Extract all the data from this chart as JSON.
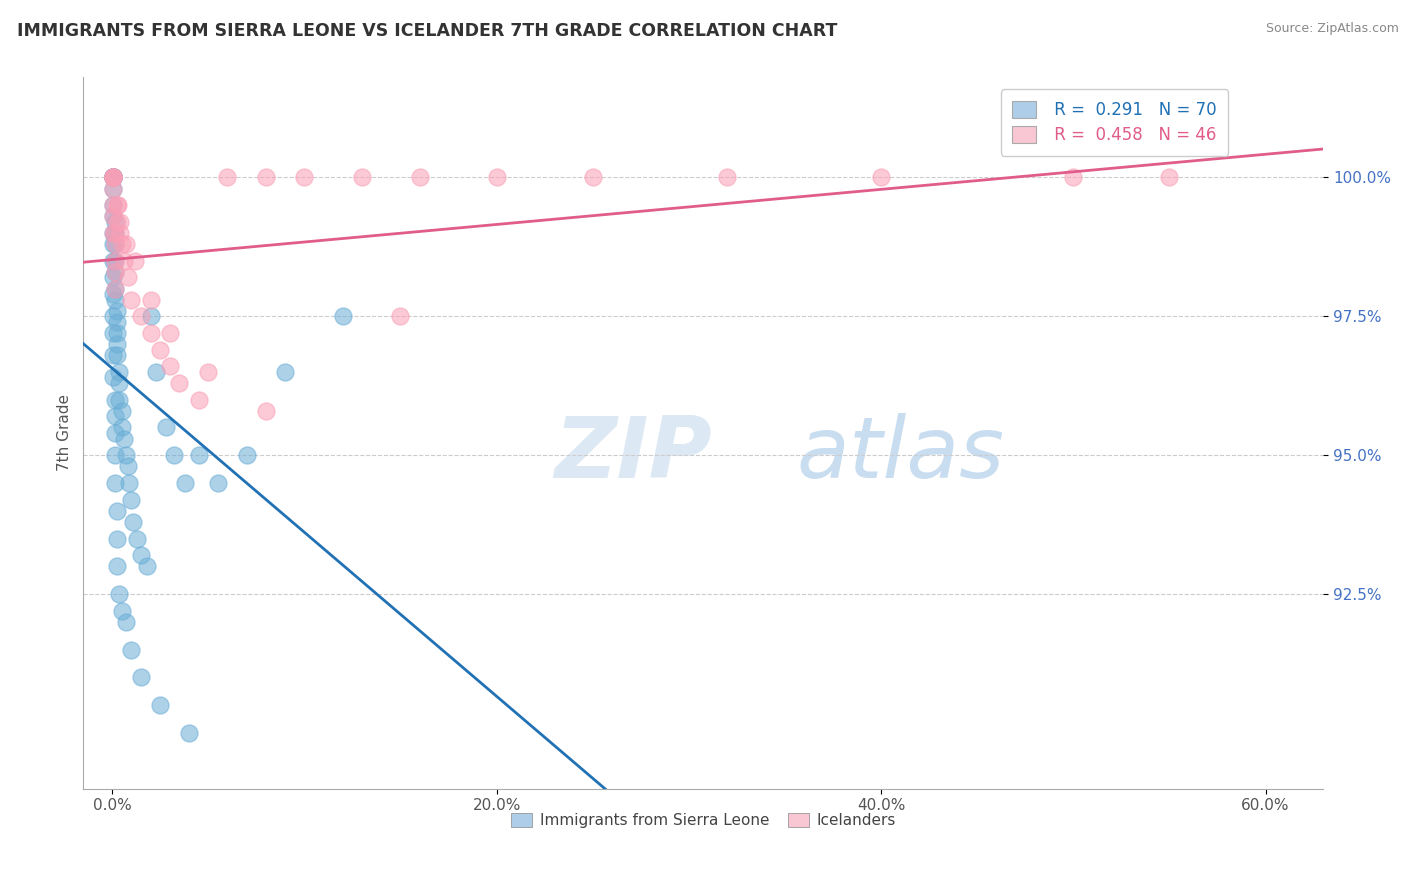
{
  "title": "IMMIGRANTS FROM SIERRA LEONE VS ICELANDER 7TH GRADE CORRELATION CHART",
  "source": "Source: ZipAtlas.com",
  "xlabel_ticks": [
    "0.0%",
    "20.0%",
    "40.0%",
    "60.0%"
  ],
  "xlabel_vals": [
    0,
    20,
    40,
    60
  ],
  "ylabel_ticks": [
    "92.5%",
    "95.0%",
    "97.5%",
    "100.0%"
  ],
  "ylabel_vals": [
    92.5,
    95.0,
    97.5,
    100.0
  ],
  "xlim": [
    -1.5,
    63
  ],
  "ylim": [
    89.0,
    101.8
  ],
  "blue_label": "Immigrants from Sierra Leone",
  "pink_label": "Icelanders",
  "blue_R": 0.291,
  "blue_N": 70,
  "pink_R": 0.458,
  "pink_N": 46,
  "blue_color": "#6baed6",
  "pink_color": "#fa9fb5",
  "blue_line_color": "#2171b5",
  "pink_line_color": "#e05c8a",
  "blue_x": [
    0.05,
    0.05,
    0.05,
    0.05,
    0.05,
    0.05,
    0.05,
    0.05,
    0.05,
    0.05,
    0.15,
    0.15,
    0.15,
    0.15,
    0.15,
    0.15,
    0.15,
    0.25,
    0.25,
    0.25,
    0.25,
    0.25,
    0.35,
    0.35,
    0.35,
    0.5,
    0.5,
    0.6,
    0.7,
    0.8,
    0.9,
    1.0,
    1.1,
    1.3,
    1.5,
    1.8,
    2.0,
    2.3,
    2.8,
    3.2,
    3.8,
    4.5,
    5.5,
    7.0,
    9.0,
    12.0,
    0.05,
    0.05,
    0.05,
    0.05,
    0.05,
    0.05,
    0.05,
    0.05,
    0.05,
    0.15,
    0.15,
    0.15,
    0.15,
    0.15,
    0.25,
    0.25,
    0.25,
    0.35,
    0.5,
    0.7,
    1.0,
    1.5,
    2.5,
    4.0
  ],
  "blue_y": [
    100.0,
    100.0,
    100.0,
    100.0,
    100.0,
    100.0,
    100.0,
    99.8,
    99.5,
    99.3,
    99.2,
    99.0,
    98.8,
    98.5,
    98.3,
    98.0,
    97.8,
    97.6,
    97.4,
    97.2,
    97.0,
    96.8,
    96.5,
    96.3,
    96.0,
    95.8,
    95.5,
    95.3,
    95.0,
    94.8,
    94.5,
    94.2,
    93.8,
    93.5,
    93.2,
    93.0,
    97.5,
    96.5,
    95.5,
    95.0,
    94.5,
    95.0,
    94.5,
    95.0,
    96.5,
    97.5,
    99.0,
    98.8,
    98.5,
    98.2,
    97.9,
    97.5,
    97.2,
    96.8,
    96.4,
    96.0,
    95.7,
    95.4,
    95.0,
    94.5,
    94.0,
    93.5,
    93.0,
    92.5,
    92.2,
    92.0,
    91.5,
    91.0,
    90.5,
    90.0
  ],
  "pink_x": [
    0.05,
    0.05,
    0.05,
    0.05,
    0.05,
    0.05,
    0.05,
    0.05,
    0.15,
    0.15,
    0.15,
    0.15,
    0.15,
    0.25,
    0.25,
    0.4,
    0.5,
    0.6,
    0.8,
    1.0,
    1.5,
    2.0,
    2.5,
    3.0,
    3.5,
    4.5,
    6.0,
    8.0,
    10.0,
    13.0,
    16.0,
    20.0,
    25.0,
    32.0,
    40.0,
    50.0,
    0.3,
    0.4,
    0.7,
    1.2,
    2.0,
    3.0,
    5.0,
    8.0,
    15.0,
    55.0
  ],
  "pink_y": [
    100.0,
    100.0,
    100.0,
    100.0,
    99.8,
    99.5,
    99.3,
    99.0,
    99.0,
    98.8,
    98.5,
    98.3,
    98.0,
    99.5,
    99.2,
    99.0,
    98.8,
    98.5,
    98.2,
    97.8,
    97.5,
    97.2,
    96.9,
    96.6,
    96.3,
    96.0,
    100.0,
    100.0,
    100.0,
    100.0,
    100.0,
    100.0,
    100.0,
    100.0,
    100.0,
    100.0,
    99.5,
    99.2,
    98.8,
    98.5,
    97.8,
    97.2,
    96.5,
    95.8,
    97.5,
    100.0
  ]
}
